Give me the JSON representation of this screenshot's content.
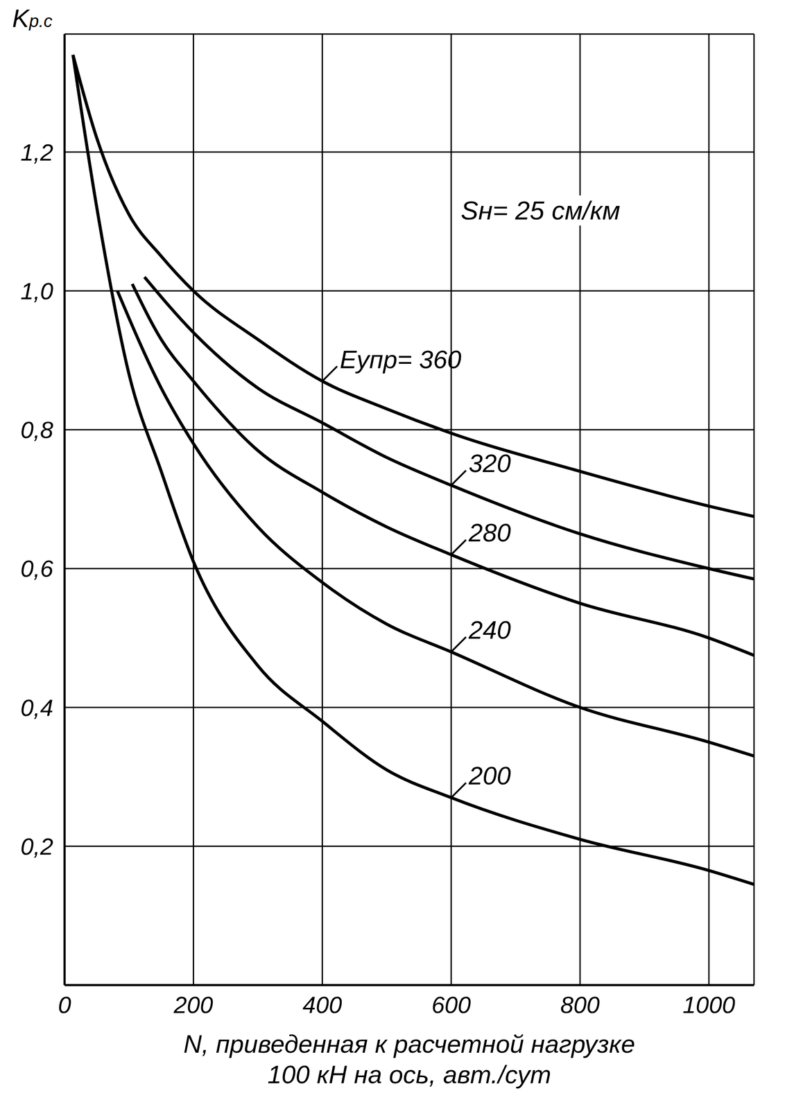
{
  "chart_data": {
    "type": "line",
    "y_label": "Kр.с",
    "x_label": [
      "N, приведенная к расчетной нагрузке",
      "100 кН на ось, авт./сут"
    ],
    "annotations": [
      "Sн= 25 см/км"
    ],
    "xlim": [
      0,
      1070
    ],
    "ylim": [
      0,
      1.37
    ],
    "xticks": [
      0,
      200,
      400,
      600,
      800,
      1000
    ],
    "yticks": [
      {
        "value": 0.2,
        "label": "0,2"
      },
      {
        "value": 0.4,
        "label": "0,4"
      },
      {
        "value": 0.6,
        "label": "0,6"
      },
      {
        "value": 0.8,
        "label": "0,8"
      },
      {
        "value": 1.0,
        "label": "1,0"
      },
      {
        "value": 1.2,
        "label": "1,2"
      }
    ],
    "grid": true,
    "series": [
      {
        "name": "Eупр= 360",
        "color": "#000000",
        "x": [
          13,
          50,
          100,
          150,
          200,
          300,
          400,
          500,
          600,
          800,
          1000,
          1070
        ],
        "values": [
          1.34,
          1.22,
          1.11,
          1.05,
          1.0,
          0.93,
          0.87,
          0.83,
          0.795,
          0.74,
          0.69,
          0.675
        ]
      },
      {
        "name": "320",
        "color": "#000000",
        "x": [
          124,
          200,
          300,
          400,
          500,
          600,
          800,
          1000,
          1070
        ],
        "values": [
          1.02,
          0.94,
          0.86,
          0.81,
          0.76,
          0.72,
          0.65,
          0.6,
          0.585
        ]
      },
      {
        "name": "280",
        "color": "#000000",
        "x": [
          105,
          150,
          200,
          300,
          400,
          500,
          600,
          800,
          1000,
          1070
        ],
        "values": [
          1.01,
          0.93,
          0.87,
          0.77,
          0.71,
          0.66,
          0.62,
          0.55,
          0.5,
          0.475
        ]
      },
      {
        "name": "240",
        "color": "#000000",
        "x": [
          82,
          150,
          200,
          300,
          400,
          500,
          600,
          800,
          1000,
          1070
        ],
        "values": [
          1.0,
          0.86,
          0.78,
          0.66,
          0.58,
          0.52,
          0.48,
          0.4,
          0.35,
          0.33
        ]
      },
      {
        "name": "200",
        "color": "#000000",
        "x": [
          13,
          50,
          100,
          150,
          200,
          300,
          400,
          500,
          600,
          800,
          1000,
          1070
        ],
        "values": [
          1.34,
          1.12,
          0.88,
          0.74,
          0.61,
          0.46,
          0.38,
          0.31,
          0.27,
          0.21,
          0.165,
          0.145
        ]
      }
    ]
  }
}
